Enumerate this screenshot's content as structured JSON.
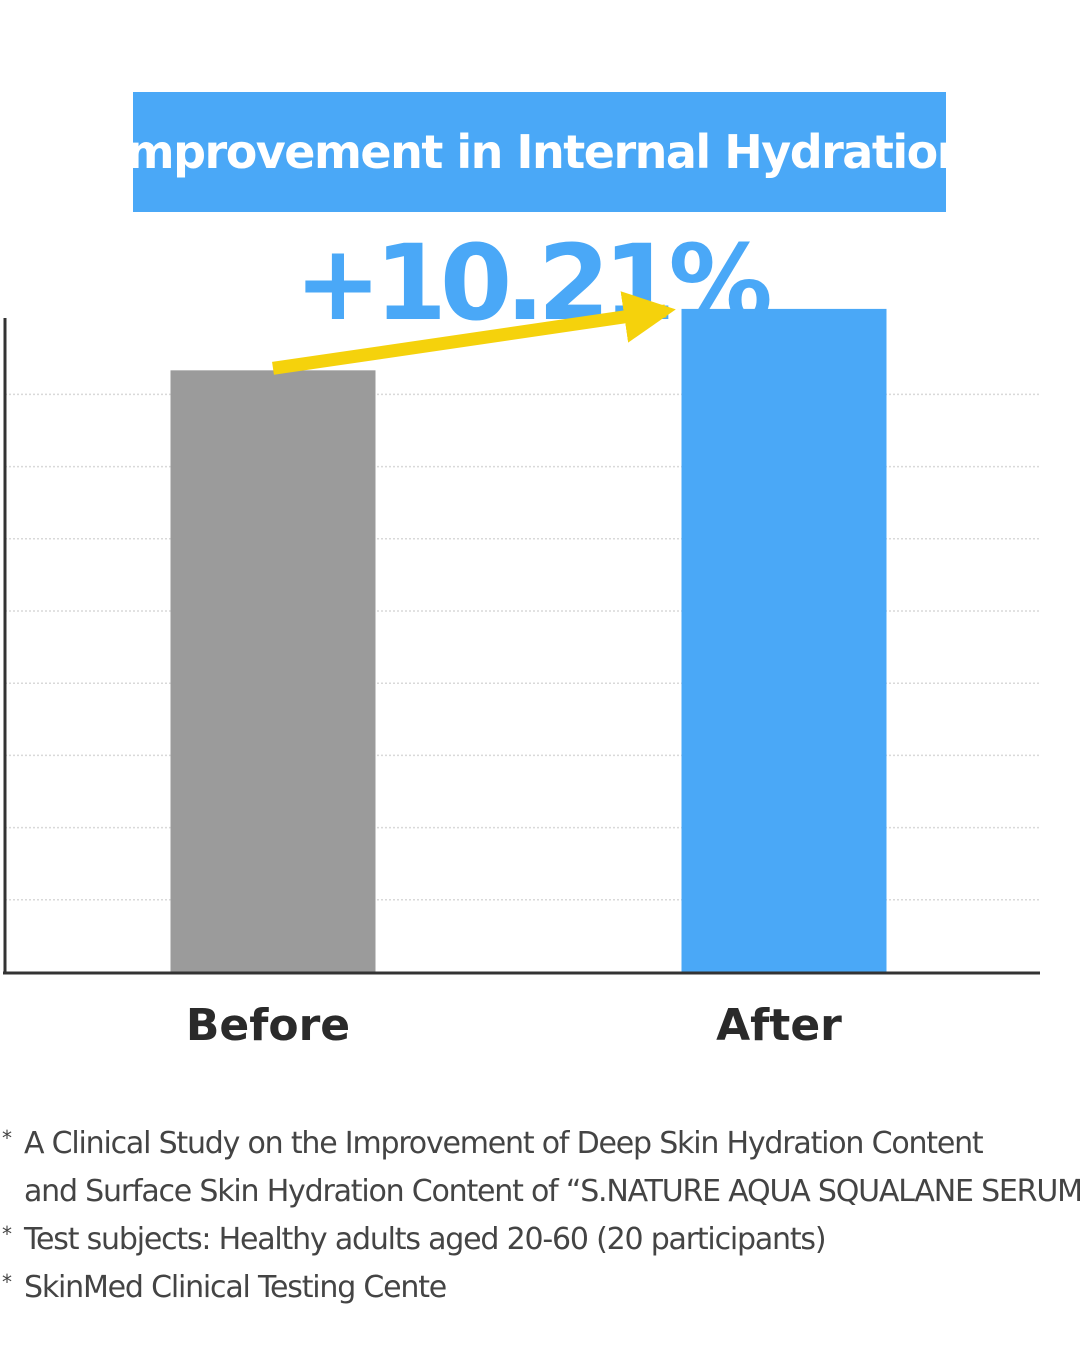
{
  "header": {
    "title": "Improvement in Internal Hydration",
    "highlight_value": "+10.21%"
  },
  "colors": {
    "accent_blue": "#4aa8f7",
    "before_bar": "#9b9b9b",
    "arrow_yellow": "#f5d20c",
    "axis": "#333333",
    "grid": "#d9d9d9"
  },
  "chart_data": {
    "type": "bar",
    "categories": [
      "Before",
      "After"
    ],
    "values": [
      100,
      110.21
    ],
    "ylim": [
      0,
      120
    ],
    "xlabel": "",
    "ylabel": "",
    "grid": true,
    "annotation": "+10.21%"
  },
  "footnotes": {
    "marker": "*",
    "items": [
      {
        "line1": "A Clinical Study on the Improvement of Deep Skin Hydration Content",
        "line2": "and Surface Skin Hydration Content of “S.NATURE AQUA SQUALANE SERUM”"
      },
      {
        "line1": "Test subjects: Healthy adults aged 20-60 (20 participants)"
      },
      {
        "line1": "SkinMed Clinical Testing Cente"
      }
    ]
  }
}
